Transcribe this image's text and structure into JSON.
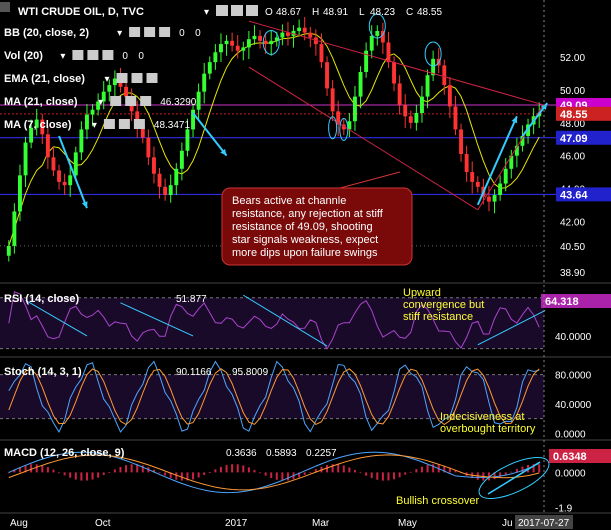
{
  "header": {
    "title": "WTI CRUDE OIL, D, TVC",
    "ohlc": [
      {
        "label": "O",
        "value": "48.67"
      },
      {
        "label": "H",
        "value": "48.91"
      },
      {
        "label": "L",
        "value": "48.23"
      },
      {
        "label": "C",
        "value": "48.55"
      }
    ]
  },
  "indicators": [
    {
      "label": "BB (20, close, 2)",
      "values": [
        "0",
        "0"
      ],
      "colors": [
        "#4da6ff",
        "#4da6ff"
      ]
    },
    {
      "label": "Vol (20)",
      "values": [
        "0",
        "0"
      ],
      "colors": [
        "#4da6ff",
        "#4da6ff"
      ]
    },
    {
      "label": "EMA (21, close)",
      "values": [],
      "colors": []
    },
    {
      "label": "MA (21, close)",
      "values": [
        "46.3290"
      ],
      "colors": [
        "#ffff33"
      ]
    },
    {
      "label": "MA (7, close)",
      "values": [
        "48.3471"
      ],
      "colors": [
        "#cc33cc"
      ]
    }
  ],
  "colors": {
    "background": "#000000",
    "up_candle": "#33ff33",
    "down_candle": "#ff3333",
    "channel": "#cc2244",
    "resistance": "#3333ff",
    "ma21": "#e6e600",
    "trend_arrow": "#33ccff",
    "callout_fill": "#7a0a0a",
    "annotation": "#ffff33"
  },
  "chart_data": [
    {
      "type": "candlestick",
      "title": "WTI CRUDE OIL, D, TVC",
      "ylim": [
        38.3,
        55.0
      ],
      "yticks": [
        "52.00",
        "50.00",
        "48.00",
        "46.00",
        "44.00",
        "42.00",
        "40.50",
        "38.90"
      ],
      "ytick_values": [
        52.0,
        50.0,
        48.0,
        46.0,
        44.0,
        42.0,
        40.5,
        38.9
      ],
      "price_tags": [
        {
          "value": "49.09",
          "level": 49.09,
          "color": "#cc00cc"
        },
        {
          "value": "48.55",
          "level": 48.55,
          "color": "#cc2222"
        },
        {
          "value": "47.09",
          "level": 47.09,
          "color": "#2222cc"
        },
        {
          "value": "43.64",
          "level": 43.64,
          "color": "#2222cc"
        }
      ],
      "horizontal_levels": [
        49.09,
        47.09,
        43.64
      ],
      "close_series": [
        40.5,
        42.6,
        44.8,
        46.8,
        47.7,
        48.2,
        47.3,
        45.9,
        45.1,
        44.4,
        44.2,
        44.8,
        46.2,
        47.6,
        48.5,
        48.8,
        49.3,
        49.9,
        50.3,
        50.7,
        50.2,
        49.6,
        48.7,
        47.8,
        47.1,
        45.9,
        44.9,
        44.1,
        43.6,
        44.2,
        45.2,
        46.3,
        47.6,
        48.8,
        49.9,
        51.0,
        51.7,
        52.3,
        52.8,
        53.0,
        52.7,
        52.4,
        52.6,
        53.1,
        53.3,
        53.0,
        52.8,
        53.0,
        53.2,
        53.5,
        53.3,
        53.6,
        53.8,
        53.5,
        53.2,
        52.8,
        51.7,
        50.1,
        48.7,
        47.9,
        47.6,
        48.1,
        49.6,
        51.1,
        52.4,
        53.3,
        53.6,
        52.9,
        51.7,
        50.4,
        49.1,
        48.4,
        48.0,
        48.6,
        49.6,
        50.9,
        51.9,
        51.5,
        50.3,
        49.0,
        47.6,
        46.1,
        45.0,
        44.4,
        44.1,
        43.5,
        43.2,
        43.6,
        44.3,
        45.2,
        46.0,
        46.6,
        47.2,
        47.9,
        48.4,
        48.6
      ],
      "annotations": [
        {
          "text": [
            "Bears active at channle",
            "resistance, any rejection at stiff",
            "resistance of 49.09, shooting",
            "star signals weakness, expect",
            "more dips upon failure swings"
          ]
        }
      ]
    },
    {
      "type": "line",
      "indicator": "RSI (14, close)",
      "value": "64.318",
      "series_value": "51.877",
      "ylim": [
        25,
        80
      ],
      "yticks": [
        "40.0000"
      ],
      "ytick_values": [
        40
      ],
      "annotations": [
        {
          "text": [
            "Upward",
            "convergence but",
            "stiff resistance"
          ]
        }
      ]
    },
    {
      "type": "line",
      "indicator": "Stoch (14, 3, 1)",
      "values": [
        {
          "value": "90.1166",
          "color": "#4da6ff"
        },
        {
          "value": "95.8009",
          "color": "#ff9933"
        }
      ],
      "ylim": [
        -5,
        100
      ],
      "yticks": [
        "80.0000",
        "40.0000",
        "0.0000"
      ],
      "ytick_values": [
        80,
        40,
        0
      ],
      "annotations": [
        {
          "text": [
            "Indecisiveness at",
            "overbought territory"
          ]
        }
      ]
    },
    {
      "type": "bar",
      "indicator": "MACD (12, 26, close, 9)",
      "values": [
        {
          "value": "0.3636",
          "color": "#cc2244"
        },
        {
          "value": "0.5893",
          "color": "#4da6ff"
        },
        {
          "value": "0.2257",
          "color": "#ff9933"
        }
      ],
      "tag": "0.6348",
      "ylim": [
        -2.1,
        1.6
      ],
      "yticks": [
        "0.0000",
        "-1.9"
      ],
      "ytick_values": [
        0,
        -1.9
      ],
      "annotations": [
        {
          "text": [
            "Bullish crossover"
          ]
        }
      ]
    }
  ],
  "x_axis": {
    "labels": [
      "Aug",
      "Oct",
      "2017",
      "Mar",
      "May",
      "Ju"
    ],
    "date_tag": "2017-07-27"
  }
}
